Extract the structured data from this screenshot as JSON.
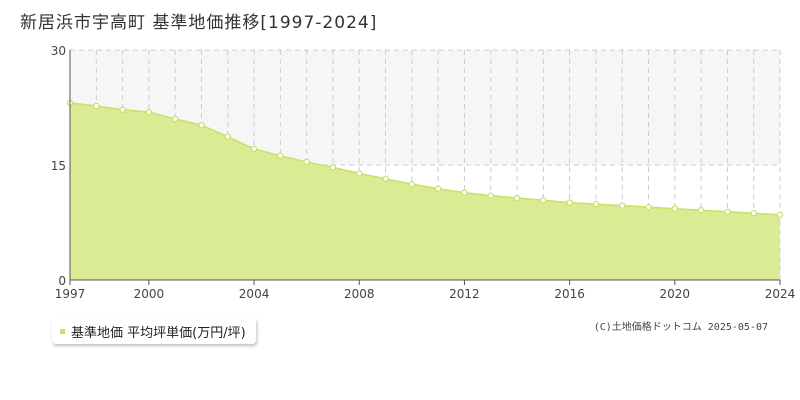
{
  "title": "新居浜市宇高町 基準地価推移[1997-2024]",
  "legend_label": "基準地価 平均坪単価(万円/坪)",
  "credit": "(C)土地価格ドットコム 2025-05-07",
  "colors": {
    "fill": "#d9ec93",
    "line": "#c6e06a",
    "marker_fill": "#ffffff",
    "band": "#f7f6f7",
    "grid": "#cccccc",
    "axis": "#555555"
  },
  "chart_data": {
    "type": "area",
    "title": "新居浜市宇高町 基準地価推移[1997-2024]",
    "xlabel": "",
    "ylabel": "",
    "xlim": [
      1997,
      2024
    ],
    "ylim": [
      0,
      30
    ],
    "yticks": [
      0,
      15,
      30
    ],
    "xticks": [
      1997,
      2000,
      2004,
      2008,
      2012,
      2016,
      2020,
      2024
    ],
    "grid": true,
    "legend_position": "bottom-left",
    "series": [
      {
        "name": "基準地価 平均坪単価(万円/坪)",
        "x": [
          1997,
          1998,
          1999,
          2000,
          2001,
          2002,
          2003,
          2004,
          2005,
          2006,
          2007,
          2008,
          2009,
          2010,
          2011,
          2012,
          2013,
          2014,
          2015,
          2016,
          2017,
          2018,
          2019,
          2020,
          2021,
          2022,
          2023,
          2024
        ],
        "values": [
          23.1,
          22.7,
          22.2,
          21.9,
          21.0,
          20.2,
          18.7,
          17.1,
          16.2,
          15.4,
          14.7,
          13.9,
          13.2,
          12.5,
          11.9,
          11.4,
          11.0,
          10.7,
          10.4,
          10.1,
          9.9,
          9.7,
          9.5,
          9.3,
          9.1,
          8.9,
          8.7,
          8.5
        ]
      }
    ]
  }
}
